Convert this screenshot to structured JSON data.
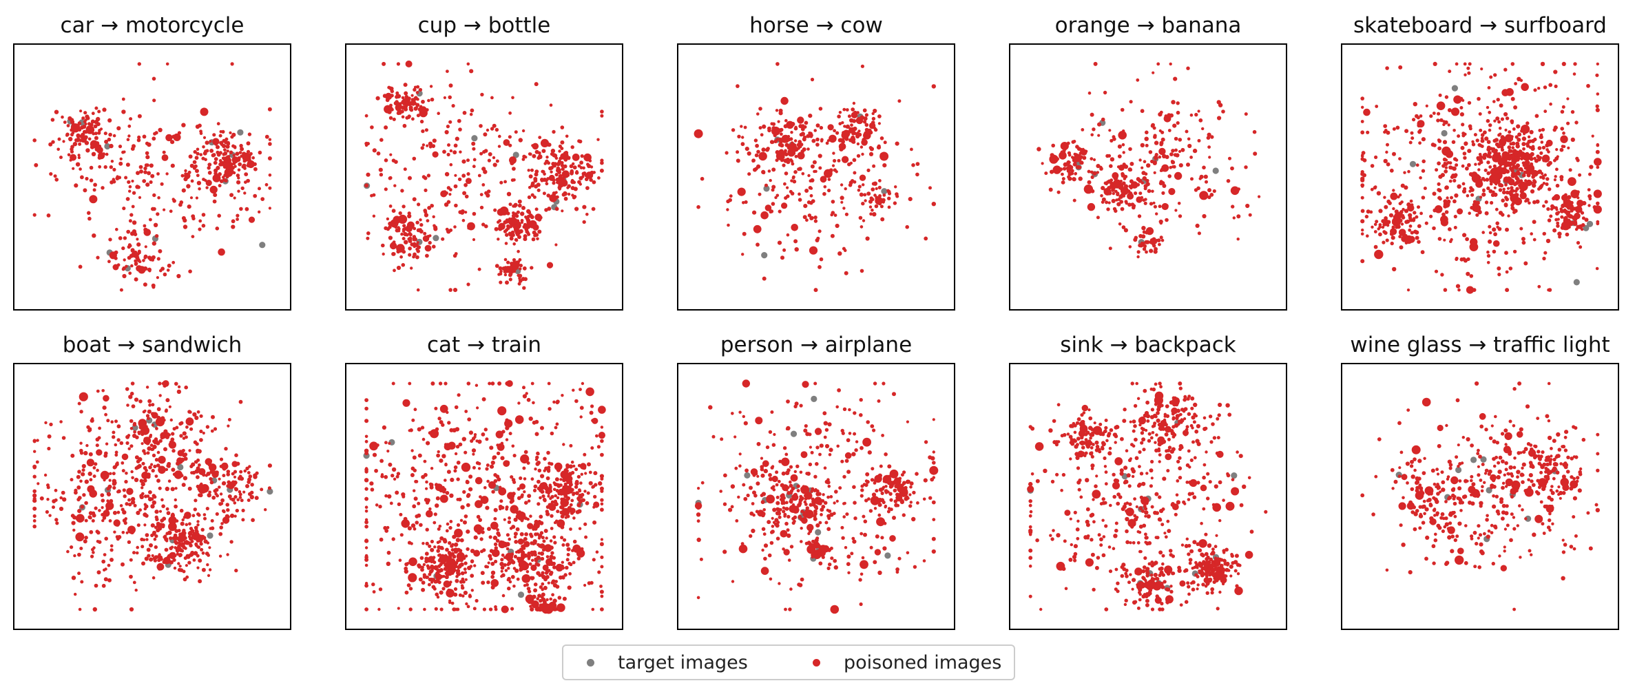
{
  "colors": {
    "target": "#7f7f7f",
    "poisoned": "#d62728"
  },
  "legend": {
    "target_label": "target images",
    "poisoned_label": "poisoned images",
    "placement": "lower-center"
  },
  "chart_data": [
    {
      "type": "scatter",
      "title": "car → motorcycle",
      "grid": false,
      "xlim": [
        -1,
        1
      ],
      "ylim": [
        -1,
        1
      ],
      "n_poisoned": 520,
      "n_target": 12,
      "clusters": [
        {
          "x": 0.1,
          "y": -0.05,
          "s": 0.35,
          "w": 3
        },
        {
          "x": 0.55,
          "y": 0.12,
          "s": 0.12,
          "w": 2
        },
        {
          "x": -0.45,
          "y": 0.2,
          "s": 0.15,
          "w": 1
        },
        {
          "x": -0.05,
          "y": -0.6,
          "s": 0.12,
          "w": 1
        },
        {
          "x": -0.5,
          "y": 0.35,
          "s": 0.08,
          "w": 1
        }
      ]
    },
    {
      "type": "scatter",
      "title": "cup → bottle",
      "grid": false,
      "xlim": [
        -1,
        1
      ],
      "ylim": [
        -1,
        1
      ],
      "n_poisoned": 720,
      "n_target": 10,
      "clusters": [
        {
          "x": -0.1,
          "y": 0.05,
          "s": 0.4,
          "w": 3
        },
        {
          "x": 0.55,
          "y": 0.02,
          "s": 0.13,
          "w": 2
        },
        {
          "x": 0.25,
          "y": -0.35,
          "s": 0.08,
          "w": 1
        },
        {
          "x": -0.55,
          "y": -0.45,
          "s": 0.1,
          "w": 1
        },
        {
          "x": 0.2,
          "y": -0.7,
          "s": 0.05,
          "w": 0.6
        },
        {
          "x": -0.55,
          "y": 0.55,
          "s": 0.08,
          "w": 1
        }
      ]
    },
    {
      "type": "scatter",
      "title": "horse → cow",
      "grid": false,
      "xlim": [
        -1,
        1
      ],
      "ylim": [
        -1,
        1
      ],
      "n_poisoned": 450,
      "n_target": 6,
      "clusters": [
        {
          "x": -0.2,
          "y": 0.25,
          "s": 0.1,
          "w": 1.5
        },
        {
          "x": 0.3,
          "y": 0.35,
          "s": 0.1,
          "w": 1
        },
        {
          "x": -0.05,
          "y": 0.0,
          "s": 0.35,
          "w": 3
        },
        {
          "x": 0.45,
          "y": -0.15,
          "s": 0.08,
          "w": 0.5
        }
      ]
    },
    {
      "type": "scatter",
      "title": "orange → banana",
      "grid": false,
      "xlim": [
        -1,
        1
      ],
      "ylim": [
        -1,
        1
      ],
      "n_poisoned": 410,
      "n_target": 8,
      "clusters": [
        {
          "x": 0.05,
          "y": 0.1,
          "s": 0.3,
          "w": 3
        },
        {
          "x": -0.2,
          "y": -0.1,
          "s": 0.1,
          "w": 1
        },
        {
          "x": 0.0,
          "y": -0.5,
          "s": 0.06,
          "w": 0.6
        },
        {
          "x": -0.55,
          "y": 0.1,
          "s": 0.08,
          "w": 1
        }
      ]
    },
    {
      "type": "scatter",
      "title": "skateboard → surfboard",
      "grid": false,
      "xlim": [
        -1,
        1
      ],
      "ylim": [
        -1,
        1
      ],
      "n_poisoned": 950,
      "n_target": 12,
      "clusters": [
        {
          "x": 0.0,
          "y": 0.05,
          "s": 0.45,
          "w": 4
        },
        {
          "x": 0.25,
          "y": 0.1,
          "s": 0.15,
          "w": 2
        },
        {
          "x": 0.65,
          "y": -0.3,
          "s": 0.08,
          "w": 0.6
        },
        {
          "x": -0.6,
          "y": -0.35,
          "s": 0.1,
          "w": 0.6
        }
      ]
    },
    {
      "type": "scatter",
      "title": "boat → sandwich",
      "grid": false,
      "xlim": [
        -1,
        1
      ],
      "ylim": [
        -1,
        1
      ],
      "n_poisoned": 800,
      "n_target": 12,
      "clusters": [
        {
          "x": -0.25,
          "y": 0.0,
          "s": 0.35,
          "w": 3
        },
        {
          "x": 0.05,
          "y": 0.45,
          "s": 0.2,
          "w": 1.5
        },
        {
          "x": 0.2,
          "y": -0.35,
          "s": 0.12,
          "w": 1.5
        },
        {
          "x": 0.55,
          "y": 0.05,
          "s": 0.15,
          "w": 1
        }
      ]
    },
    {
      "type": "scatter",
      "title": "cat → train",
      "grid": false,
      "xlim": [
        -1,
        1
      ],
      "ylim": [
        -1,
        1
      ],
      "n_poisoned": 1150,
      "n_target": 8,
      "clusters": [
        {
          "x": 0.0,
          "y": 0.0,
          "s": 0.5,
          "w": 4
        },
        {
          "x": 0.55,
          "y": 0.05,
          "s": 0.12,
          "w": 1
        },
        {
          "x": 0.35,
          "y": -0.45,
          "s": 0.15,
          "w": 1
        },
        {
          "x": -0.3,
          "y": -0.55,
          "s": 0.12,
          "w": 1
        },
        {
          "x": 0.45,
          "y": -0.85,
          "s": 0.05,
          "w": 0.4
        }
      ]
    },
    {
      "type": "scatter",
      "title": "person → airplane",
      "grid": false,
      "xlim": [
        -1,
        1
      ],
      "ylim": [
        -1,
        1
      ],
      "n_poisoned": 560,
      "n_target": 14,
      "clusters": [
        {
          "x": 0.0,
          "y": 0.0,
          "s": 0.45,
          "w": 4
        },
        {
          "x": -0.15,
          "y": -0.05,
          "s": 0.12,
          "w": 1.5
        },
        {
          "x": 0.55,
          "y": 0.05,
          "s": 0.1,
          "w": 1
        },
        {
          "x": 0.0,
          "y": -0.4,
          "s": 0.04,
          "w": 0.4
        }
      ]
    },
    {
      "type": "scatter",
      "title": "sink → backpack",
      "grid": false,
      "xlim": [
        -1,
        1
      ],
      "ylim": [
        -1,
        1
      ],
      "n_poisoned": 820,
      "n_target": 12,
      "clusters": [
        {
          "x": -0.1,
          "y": -0.05,
          "s": 0.4,
          "w": 3
        },
        {
          "x": 0.45,
          "y": -0.55,
          "s": 0.1,
          "w": 1.5
        },
        {
          "x": 0.15,
          "y": 0.55,
          "s": 0.15,
          "w": 1.5
        },
        {
          "x": -0.45,
          "y": 0.45,
          "s": 0.1,
          "w": 1
        },
        {
          "x": 0.0,
          "y": -0.65,
          "s": 0.1,
          "w": 1
        }
      ]
    },
    {
      "type": "scatter",
      "title": "wine glass → traffic light",
      "grid": false,
      "xlim": [
        -1,
        1
      ],
      "ylim": [
        -1,
        1
      ],
      "n_poisoned": 480,
      "n_target": 10,
      "clusters": [
        {
          "x": 0.05,
          "y": 0.05,
          "s": 0.35,
          "w": 3
        },
        {
          "x": 0.45,
          "y": 0.2,
          "s": 0.15,
          "w": 1.5
        },
        {
          "x": -0.35,
          "y": 0.0,
          "s": 0.15,
          "w": 1
        }
      ]
    }
  ]
}
